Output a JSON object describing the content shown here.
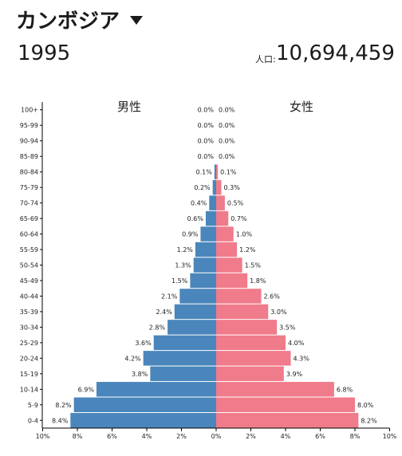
{
  "header": {
    "country": "カンボジア",
    "year": "1995",
    "population_label": "人口:",
    "population_value": "10,694,459"
  },
  "chart_data": {
    "type": "bar",
    "orientation": "horizontal",
    "subtype": "population-pyramid",
    "left_title": "男性",
    "right_title": "女性",
    "categories": [
      "100+",
      "95-99",
      "90-94",
      "85-89",
      "80-84",
      "75-79",
      "70-74",
      "65-69",
      "60-64",
      "55-59",
      "50-54",
      "45-49",
      "40-44",
      "35-39",
      "30-34",
      "25-29",
      "20-24",
      "15-19",
      "10-14",
      "5-9",
      "0-4"
    ],
    "series": [
      {
        "name": "男性",
        "color": "#4a86bb",
        "values": [
          0.0,
          0.0,
          0.0,
          0.0,
          0.1,
          0.2,
          0.4,
          0.6,
          0.9,
          1.2,
          1.3,
          1.5,
          2.1,
          2.4,
          2.8,
          3.6,
          4.2,
          3.8,
          6.9,
          8.2,
          8.4
        ],
        "labels": [
          "0.0%",
          "0.0%",
          "0.0%",
          "0.0%",
          "0.1%",
          "0.2%",
          "0.4%",
          "0.6%",
          "0.9%",
          "1.2%",
          "1.3%",
          "1.5%",
          "2.1%",
          "2.4%",
          "2.8%",
          "3.6%",
          "4.2%",
          "3.8%",
          "6.9%",
          "8.2%",
          "8.4%"
        ]
      },
      {
        "name": "女性",
        "color": "#f07b8a",
        "values": [
          0.0,
          0.0,
          0.0,
          0.0,
          0.1,
          0.3,
          0.5,
          0.7,
          1.0,
          1.2,
          1.5,
          1.8,
          2.6,
          3.0,
          3.5,
          4.0,
          4.3,
          3.9,
          6.8,
          8.0,
          8.2
        ],
        "labels": [
          "0.0%",
          "0.0%",
          "0.0%",
          "0.0%",
          "0.1%",
          "0.3%",
          "0.5%",
          "0.7%",
          "1.0%",
          "1.2%",
          "1.5%",
          "1.8%",
          "2.6%",
          "3.0%",
          "3.5%",
          "4.0%",
          "4.3%",
          "3.9%",
          "6.8%",
          "8.0%",
          "8.2%"
        ]
      }
    ],
    "x_ticks": [
      "10%",
      "8%",
      "6%",
      "4%",
      "2%",
      "0%",
      "2%",
      "4%",
      "6%",
      "8%",
      "10%"
    ],
    "xlim": [
      -10,
      10
    ],
    "grid": false
  }
}
